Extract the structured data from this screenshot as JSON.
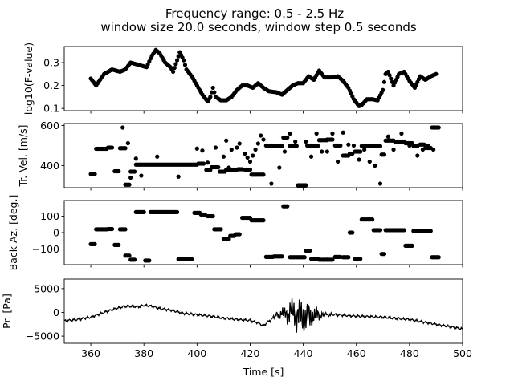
{
  "chart_data": {
    "type": "scatter",
    "title": [
      "Frequency range: 0.5 - 2.5 Hz",
      "window size 20.0 seconds, window step 0.5 seconds"
    ],
    "xlabel": "Time [s]",
    "xlim": [
      350,
      500
    ],
    "xticks": [
      360,
      380,
      400,
      420,
      440,
      460,
      480,
      500
    ],
    "marker_color": "#000000",
    "panels": [
      {
        "name": "fvalue",
        "type": "scatter",
        "ylabel": "log10(F-value)",
        "ylim": [
          0.09,
          0.37
        ],
        "yticks": [
          0.1,
          0.2,
          0.3
        ],
        "ytick_labels": [
          "0.1",
          "0.2",
          "0.3"
        ],
        "x_start": 360,
        "x_step": 0.5,
        "knots": [
          [
            360,
            0.23
          ],
          [
            362,
            0.2
          ],
          [
            365,
            0.25
          ],
          [
            368,
            0.27
          ],
          [
            371,
            0.26
          ],
          [
            373,
            0.27
          ],
          [
            375,
            0.3
          ],
          [
            378,
            0.29
          ],
          [
            381,
            0.28
          ],
          [
            383,
            0.33
          ],
          [
            384.5,
            0.355
          ],
          [
            386,
            0.34
          ],
          [
            388,
            0.3
          ],
          [
            390,
            0.28
          ],
          [
            391,
            0.26
          ],
          [
            392.5,
            0.31
          ],
          [
            393.5,
            0.345
          ],
          [
            395,
            0.31
          ],
          [
            396,
            0.27
          ],
          [
            398,
            0.24
          ],
          [
            400,
            0.2
          ],
          [
            402,
            0.16
          ],
          [
            404,
            0.13
          ],
          [
            405,
            0.15
          ],
          [
            406,
            0.19
          ],
          [
            407,
            0.15
          ],
          [
            409,
            0.135
          ],
          [
            411,
            0.135
          ],
          [
            413,
            0.15
          ],
          [
            415,
            0.18
          ],
          [
            417,
            0.2
          ],
          [
            419,
            0.2
          ],
          [
            421,
            0.19
          ],
          [
            423,
            0.21
          ],
          [
            425,
            0.19
          ],
          [
            427,
            0.175
          ],
          [
            430,
            0.17
          ],
          [
            432,
            0.16
          ],
          [
            434,
            0.18
          ],
          [
            436,
            0.2
          ],
          [
            438,
            0.21
          ],
          [
            440,
            0.21
          ],
          [
            442,
            0.24
          ],
          [
            444,
            0.225
          ],
          [
            446,
            0.265
          ],
          [
            448,
            0.235
          ],
          [
            451,
            0.235
          ],
          [
            453,
            0.24
          ],
          [
            455,
            0.22
          ],
          [
            457,
            0.19
          ],
          [
            459,
            0.14
          ],
          [
            461,
            0.11
          ],
          [
            462,
            0.115
          ],
          [
            464,
            0.14
          ],
          [
            466,
            0.14
          ],
          [
            468,
            0.135
          ],
          [
            470,
            0.18
          ],
          [
            471,
            0.25
          ],
          [
            472,
            0.26
          ],
          [
            474,
            0.2
          ],
          [
            476,
            0.25
          ],
          [
            478,
            0.26
          ],
          [
            480,
            0.22
          ],
          [
            482,
            0.19
          ],
          [
            484,
            0.24
          ],
          [
            486,
            0.225
          ],
          [
            488,
            0.24
          ],
          [
            490,
            0.25
          ]
        ]
      },
      {
        "name": "velocity",
        "type": "scatter",
        "ylabel": "Tr. Vel. [m/s]",
        "ylim": [
          290,
          610
        ],
        "yticks": [
          400,
          600
        ],
        "ytick_labels": [
          "400",
          "600"
        ],
        "x_start": 360,
        "x_step": 0.5,
        "segments": [
          [
            360,
            361.5,
            358
          ],
          [
            362,
            366,
            484
          ],
          [
            366.5,
            368,
            490
          ],
          [
            369,
            370.5,
            372
          ],
          [
            371,
            373,
            487
          ],
          [
            373,
            374.5,
            305
          ],
          [
            375,
            376.5,
            370
          ],
          [
            377,
            380,
            405
          ],
          [
            380.5,
            397,
            405
          ],
          [
            397.5,
            400,
            405
          ],
          [
            400.5,
            402.5,
            410
          ],
          [
            403.5,
            405,
            378
          ],
          [
            405.5,
            408,
            392
          ],
          [
            408.5,
            410.5,
            370
          ],
          [
            411,
            415,
            380
          ],
          [
            415.5,
            417,
            382
          ],
          [
            418,
            420,
            380
          ],
          [
            420.5,
            425,
            355
          ],
          [
            426,
            428.5,
            500
          ],
          [
            429,
            432,
            497
          ],
          [
            432.5,
            434,
            540
          ],
          [
            435,
            437.5,
            498
          ],
          [
            438,
            441,
            302
          ],
          [
            441.5,
            443,
            500
          ],
          [
            444,
            445.5,
            498
          ],
          [
            446,
            449,
            527
          ],
          [
            449,
            451,
            530
          ],
          [
            452,
            454,
            500
          ],
          [
            455,
            457,
            450
          ],
          [
            457.5,
            458.5,
            460
          ],
          [
            459.5,
            461.5,
            470
          ],
          [
            462,
            466,
            498
          ],
          [
            466.5,
            469,
            497
          ],
          [
            469.5,
            470.5,
            455
          ],
          [
            471,
            474,
            525
          ],
          [
            474.5,
            478,
            520
          ],
          [
            478.5,
            481,
            512
          ],
          [
            481.5,
            483,
            498
          ],
          [
            484,
            485.5,
            505
          ],
          [
            486,
            488,
            488
          ],
          [
            488.5,
            491,
            590
          ]
        ],
        "isolated": [
          [
            372,
            590
          ],
          [
            374,
            512
          ],
          [
            375,
            340
          ],
          [
            377,
            435
          ],
          [
            379,
            350
          ],
          [
            385,
            445
          ],
          [
            393,
            345
          ],
          [
            400,
            485
          ],
          [
            402,
            475
          ],
          [
            404,
            415
          ],
          [
            407,
            490
          ],
          [
            410,
            445
          ],
          [
            411,
            525
          ],
          [
            412,
            390
          ],
          [
            413,
            480
          ],
          [
            415,
            490
          ],
          [
            416,
            510
          ],
          [
            418,
            460
          ],
          [
            419,
            440
          ],
          [
            420,
            420
          ],
          [
            421,
            450
          ],
          [
            422,
            480
          ],
          [
            423,
            510
          ],
          [
            424,
            550
          ],
          [
            425,
            530
          ],
          [
            428,
            310
          ],
          [
            431,
            390
          ],
          [
            433,
            470
          ],
          [
            435,
            560
          ],
          [
            437,
            520
          ],
          [
            441,
            520
          ],
          [
            443,
            445
          ],
          [
            445,
            560
          ],
          [
            447,
            470
          ],
          [
            449,
            470
          ],
          [
            451,
            560
          ],
          [
            453,
            420
          ],
          [
            455,
            565
          ],
          [
            457,
            505
          ],
          [
            459,
            500
          ],
          [
            461,
            430
          ],
          [
            463,
            480
          ],
          [
            465,
            420
          ],
          [
            467,
            400
          ],
          [
            469,
            310
          ],
          [
            472,
            545
          ],
          [
            474,
            480
          ],
          [
            477,
            560
          ],
          [
            480,
            500
          ],
          [
            483,
            450
          ],
          [
            485,
            480
          ],
          [
            487,
            500
          ],
          [
            489,
            480
          ]
        ]
      },
      {
        "name": "backaz",
        "type": "scatter",
        "ylabel": "Back Az. [deg.]",
        "ylim": [
          -195,
          195
        ],
        "yticks": [
          -100,
          0,
          100
        ],
        "ytick_labels": [
          "−100",
          "0",
          "100"
        ],
        "x_start": 360,
        "x_step": 0.5,
        "segments": [
          [
            360,
            361.5,
            -70
          ],
          [
            362,
            366,
            20
          ],
          [
            366.5,
            368,
            22
          ],
          [
            369,
            370.5,
            -75
          ],
          [
            371,
            373,
            20
          ],
          [
            373,
            374.5,
            -140
          ],
          [
            375,
            376.5,
            -165
          ],
          [
            377,
            380,
            125
          ],
          [
            380.5,
            382,
            -170
          ],
          [
            382.5,
            389,
            125
          ],
          [
            389.5,
            392.5,
            125
          ],
          [
            393,
            398,
            -162
          ],
          [
            399,
            401,
            120
          ],
          [
            401.5,
            403,
            110
          ],
          [
            404,
            406,
            100
          ],
          [
            406.5,
            409,
            20
          ],
          [
            410,
            412,
            -40
          ],
          [
            412.5,
            414,
            -20
          ],
          [
            414.5,
            416,
            -10
          ],
          [
            417,
            420,
            90
          ],
          [
            420.5,
            425,
            75
          ],
          [
            426,
            428.5,
            -148
          ],
          [
            429,
            432,
            -145
          ],
          [
            432.5,
            434,
            160
          ],
          [
            435,
            437.5,
            -150
          ],
          [
            438,
            440.5,
            -150
          ],
          [
            441,
            442.5,
            -110
          ],
          [
            443,
            445.5,
            -160
          ],
          [
            446,
            449,
            -165
          ],
          [
            449,
            451,
            -165
          ],
          [
            452,
            454,
            -148
          ],
          [
            455,
            457,
            -150
          ],
          [
            457.5,
            458.5,
            0
          ],
          [
            459.5,
            461.5,
            -160
          ],
          [
            462,
            466,
            80
          ],
          [
            466.5,
            469,
            15
          ],
          [
            469.5,
            470.5,
            -130
          ],
          [
            471,
            474,
            15
          ],
          [
            474.5,
            478,
            15
          ],
          [
            478.5,
            481,
            -80
          ],
          [
            481.5,
            483,
            10
          ],
          [
            484,
            485.5,
            10
          ],
          [
            486,
            488,
            10
          ],
          [
            488.5,
            491,
            -150
          ]
        ]
      },
      {
        "name": "pressure",
        "type": "line",
        "ylabel": "Pr. [Pa]",
        "ylim": [
          -6500,
          7000
        ],
        "yticks": [
          -5000,
          0,
          5000
        ],
        "ytick_labels": [
          "−5000",
          "0",
          "5000"
        ],
        "envelope": [
          [
            350,
            -1800
          ],
          [
            355,
            -1500
          ],
          [
            360,
            -1000
          ],
          [
            365,
            0
          ],
          [
            370,
            900
          ],
          [
            373,
            1300
          ],
          [
            378,
            1200
          ],
          [
            380,
            1500
          ],
          [
            383,
            1300
          ],
          [
            386,
            800
          ],
          [
            390,
            500
          ],
          [
            395,
            -200
          ],
          [
            400,
            -500
          ],
          [
            405,
            -800
          ],
          [
            410,
            -1200
          ],
          [
            415,
            -1500
          ],
          [
            420,
            -1700
          ],
          [
            423,
            -2200
          ],
          [
            425,
            -2800
          ],
          [
            430,
            -500
          ],
          [
            436,
            0
          ],
          [
            440,
            -1000
          ],
          [
            446,
            -500
          ],
          [
            452,
            -500
          ],
          [
            460,
            -800
          ],
          [
            470,
            -1000
          ],
          [
            480,
            -1500
          ],
          [
            490,
            -2500
          ],
          [
            495,
            -3000
          ],
          [
            500,
            -3500
          ]
        ],
        "burst": {
          "start": 423,
          "end": 452,
          "peak_time": 439,
          "peak_amp": 4200
        }
      }
    ]
  }
}
